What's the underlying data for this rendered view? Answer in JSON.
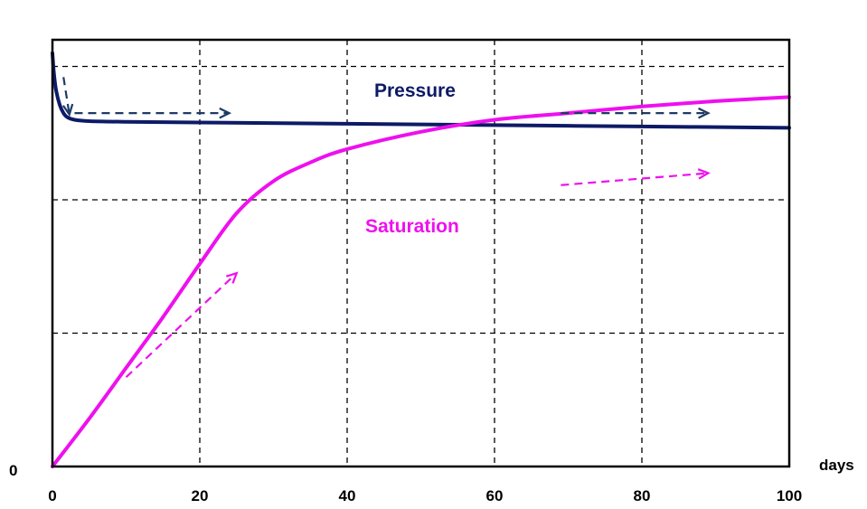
{
  "chart_data": {
    "type": "line",
    "xlabel": "days",
    "ylabel": "",
    "y_origin_label": "0",
    "x_ticks": [
      0,
      20,
      40,
      60,
      80,
      100
    ],
    "xlim": [
      0,
      100
    ],
    "ylim": [
      0,
      3.2
    ],
    "grid": true,
    "colors": {
      "pressure": "#0d1a66",
      "saturation": "#ee10ee",
      "arrow_pressure": "#1c3a66"
    },
    "series": [
      {
        "name": "Pressure",
        "x": [
          0,
          0.2,
          0.5,
          1,
          1.5,
          2,
          3,
          5,
          10,
          20,
          40,
          60,
          80,
          100
        ],
        "y": [
          3.1,
          2.95,
          2.82,
          2.71,
          2.65,
          2.62,
          2.6,
          2.59,
          2.585,
          2.58,
          2.57,
          2.56,
          2.55,
          2.54
        ]
      },
      {
        "name": "Saturation",
        "x": [
          0,
          5,
          10,
          15,
          20,
          25,
          30,
          35,
          40,
          50,
          60,
          70,
          80,
          90,
          100
        ],
        "y": [
          0,
          0.36,
          0.74,
          1.12,
          1.52,
          1.9,
          2.14,
          2.28,
          2.38,
          2.51,
          2.6,
          2.65,
          2.7,
          2.74,
          2.77
        ]
      }
    ],
    "annotations": [
      {
        "type": "arrow",
        "series": "Pressure",
        "from": [
          1.5,
          2.92
        ],
        "to": [
          2.3,
          2.64
        ]
      },
      {
        "type": "arrow",
        "series": "Pressure",
        "from": [
          3,
          2.65
        ],
        "to": [
          24,
          2.65
        ]
      },
      {
        "type": "arrow",
        "series": "Pressure",
        "from": [
          69,
          2.65
        ],
        "to": [
          89,
          2.65
        ]
      },
      {
        "type": "arrow",
        "series": "Saturation",
        "from": [
          10,
          0.67
        ],
        "to": [
          25,
          1.45
        ]
      },
      {
        "type": "arrow",
        "series": "Saturation",
        "from": [
          69,
          2.11
        ],
        "to": [
          89,
          2.2
        ]
      }
    ]
  }
}
